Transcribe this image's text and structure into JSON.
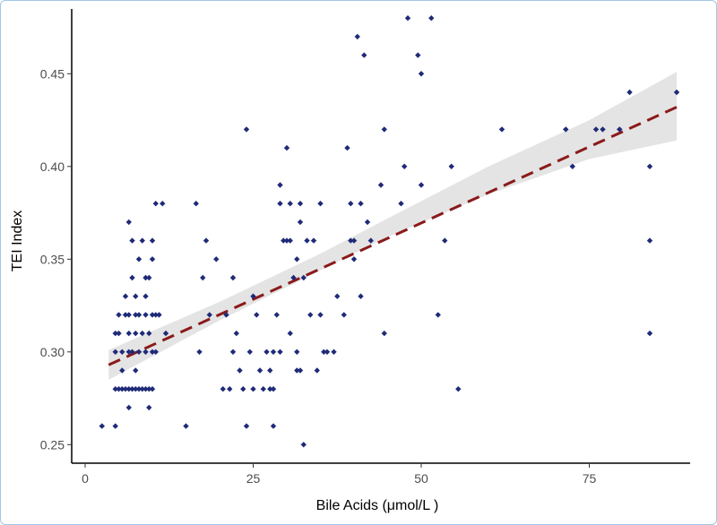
{
  "chart_data": {
    "type": "scatter",
    "title": "",
    "xlabel": "Bile Acids (μmol/L )",
    "ylabel": "TEI Index",
    "xlim": [
      -2,
      90
    ],
    "ylim": [
      0.24,
      0.483
    ],
    "x_ticks": [
      0,
      25,
      50,
      75
    ],
    "x_tick_labels": [
      "0",
      "25",
      "50",
      "75"
    ],
    "y_ticks": [
      0.25,
      0.3,
      0.35,
      0.4,
      0.45
    ],
    "y_tick_labels": [
      "0.25",
      "0.30",
      "0.35",
      "0.40",
      "0.45"
    ],
    "grid": false,
    "legend": "none",
    "colors": {
      "points": "#1f2a78",
      "trend": "#8b1a1a",
      "band": "#d9d9d9"
    },
    "trend_line": {
      "x": [
        3.5,
        88
      ],
      "y": [
        0.293,
        0.432
      ]
    },
    "confidence_band": {
      "x": [
        3.5,
        20,
        35,
        45,
        60,
        75,
        88
      ],
      "lower": [
        0.285,
        0.317,
        0.344,
        0.362,
        0.385,
        0.404,
        0.414
      ],
      "upper": [
        0.301,
        0.327,
        0.353,
        0.372,
        0.4,
        0.425,
        0.451
      ]
    },
    "points": [
      [
        2.5,
        0.26
      ],
      [
        4.5,
        0.26
      ],
      [
        4.5,
        0.28
      ],
      [
        4.5,
        0.3
      ],
      [
        4.5,
        0.31
      ],
      [
        5,
        0.28
      ],
      [
        5,
        0.31
      ],
      [
        5,
        0.32
      ],
      [
        5.5,
        0.28
      ],
      [
        5.5,
        0.29
      ],
      [
        5.5,
        0.3
      ],
      [
        6,
        0.28
      ],
      [
        6,
        0.32
      ],
      [
        6,
        0.33
      ],
      [
        6.5,
        0.27
      ],
      [
        6.5,
        0.28
      ],
      [
        6.5,
        0.3
      ],
      [
        6.5,
        0.31
      ],
      [
        6.5,
        0.32
      ],
      [
        6.5,
        0.37
      ],
      [
        7,
        0.28
      ],
      [
        7,
        0.3
      ],
      [
        7,
        0.34
      ],
      [
        7,
        0.36
      ],
      [
        7.5,
        0.28
      ],
      [
        7.5,
        0.29
      ],
      [
        7.5,
        0.31
      ],
      [
        7.5,
        0.32
      ],
      [
        7.5,
        0.33
      ],
      [
        8,
        0.28
      ],
      [
        8,
        0.3
      ],
      [
        8,
        0.32
      ],
      [
        8,
        0.35
      ],
      [
        8.5,
        0.28
      ],
      [
        8.5,
        0.31
      ],
      [
        8.5,
        0.36
      ],
      [
        9,
        0.28
      ],
      [
        9,
        0.3
      ],
      [
        9,
        0.32
      ],
      [
        9,
        0.33
      ],
      [
        9,
        0.34
      ],
      [
        9.5,
        0.27
      ],
      [
        9.5,
        0.28
      ],
      [
        9.5,
        0.31
      ],
      [
        9.5,
        0.34
      ],
      [
        10,
        0.28
      ],
      [
        10,
        0.3
      ],
      [
        10,
        0.32
      ],
      [
        10,
        0.35
      ],
      [
        10,
        0.36
      ],
      [
        10.5,
        0.3
      ],
      [
        10.5,
        0.32
      ],
      [
        10.5,
        0.38
      ],
      [
        11,
        0.32
      ],
      [
        11.5,
        0.38
      ],
      [
        12,
        0.31
      ],
      [
        15,
        0.26
      ],
      [
        16.5,
        0.38
      ],
      [
        17,
        0.3
      ],
      [
        17.5,
        0.34
      ],
      [
        18,
        0.36
      ],
      [
        18.5,
        0.32
      ],
      [
        19.5,
        0.35
      ],
      [
        20.5,
        0.28
      ],
      [
        21,
        0.32
      ],
      [
        21.5,
        0.28
      ],
      [
        22,
        0.34
      ],
      [
        22,
        0.3
      ],
      [
        22.5,
        0.31
      ],
      [
        23,
        0.29
      ],
      [
        23.5,
        0.28
      ],
      [
        24,
        0.42
      ],
      [
        24,
        0.26
      ],
      [
        24.5,
        0.3
      ],
      [
        25,
        0.33
      ],
      [
        25,
        0.28
      ],
      [
        25.5,
        0.32
      ],
      [
        26,
        0.29
      ],
      [
        26.5,
        0.28
      ],
      [
        27,
        0.3
      ],
      [
        27.5,
        0.28
      ],
      [
        27.5,
        0.29
      ],
      [
        28,
        0.3
      ],
      [
        28,
        0.26
      ],
      [
        28,
        0.28
      ],
      [
        28.5,
        0.32
      ],
      [
        29,
        0.38
      ],
      [
        29,
        0.39
      ],
      [
        29,
        0.3
      ],
      [
        29.5,
        0.36
      ],
      [
        30,
        0.36
      ],
      [
        30,
        0.41
      ],
      [
        30.5,
        0.31
      ],
      [
        30.5,
        0.38
      ],
      [
        30.5,
        0.36
      ],
      [
        31,
        0.34
      ],
      [
        31.5,
        0.35
      ],
      [
        31.5,
        0.3
      ],
      [
        31.5,
        0.29
      ],
      [
        32,
        0.29
      ],
      [
        32,
        0.37
      ],
      [
        32,
        0.38
      ],
      [
        32.5,
        0.25
      ],
      [
        32.5,
        0.34
      ],
      [
        33,
        0.36
      ],
      [
        33.5,
        0.32
      ],
      [
        34,
        0.36
      ],
      [
        34.5,
        0.29
      ],
      [
        35,
        0.38
      ],
      [
        35,
        0.32
      ],
      [
        35.5,
        0.3
      ],
      [
        36,
        0.3
      ],
      [
        37,
        0.3
      ],
      [
        37.5,
        0.33
      ],
      [
        38.5,
        0.32
      ],
      [
        39,
        0.41
      ],
      [
        39.5,
        0.38
      ],
      [
        39.5,
        0.36
      ],
      [
        40,
        0.36
      ],
      [
        40,
        0.35
      ],
      [
        40.5,
        0.47
      ],
      [
        41,
        0.38
      ],
      [
        41,
        0.33
      ],
      [
        41.5,
        0.46
      ],
      [
        42,
        0.37
      ],
      [
        42.5,
        0.36
      ],
      [
        44,
        0.39
      ],
      [
        44.5,
        0.31
      ],
      [
        44.5,
        0.42
      ],
      [
        47,
        0.38
      ],
      [
        47.5,
        0.4
      ],
      [
        48,
        0.48
      ],
      [
        49.5,
        0.46
      ],
      [
        50,
        0.45
      ],
      [
        50,
        0.39
      ],
      [
        51.5,
        0.48
      ],
      [
        52.5,
        0.32
      ],
      [
        53.5,
        0.36
      ],
      [
        54.5,
        0.4
      ],
      [
        55.5,
        0.28
      ],
      [
        62,
        0.42
      ],
      [
        71.5,
        0.42
      ],
      [
        72.5,
        0.4
      ],
      [
        76,
        0.42
      ],
      [
        77,
        0.42
      ],
      [
        79.5,
        0.42
      ],
      [
        81,
        0.44
      ],
      [
        84,
        0.4
      ],
      [
        84,
        0.36
      ],
      [
        84,
        0.31
      ],
      [
        88,
        0.44
      ]
    ]
  }
}
